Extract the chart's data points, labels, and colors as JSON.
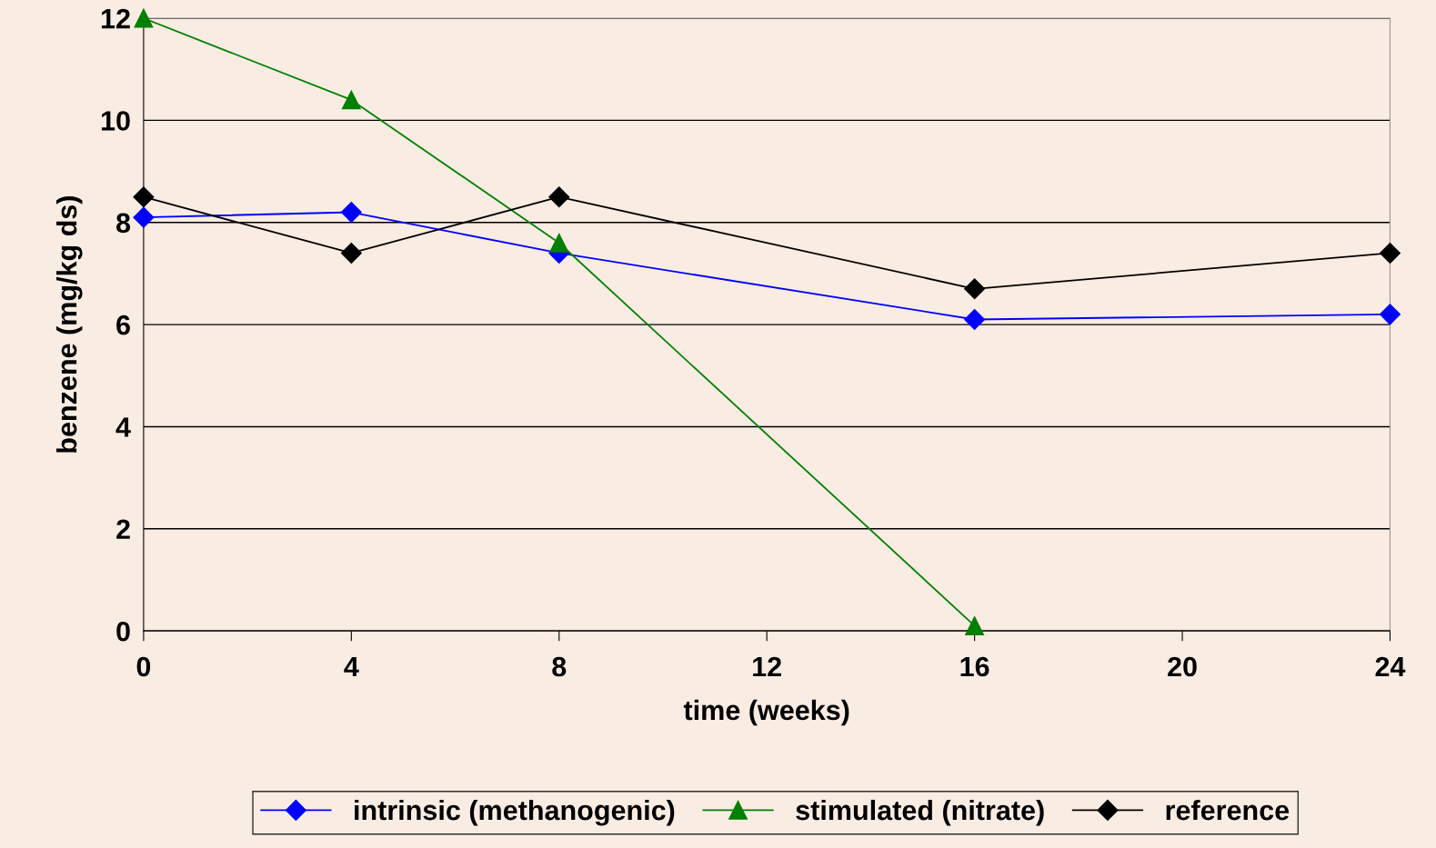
{
  "chart_data": {
    "type": "line",
    "xlabel": "time (weeks)",
    "ylabel": "benzene (mg/kg ds)",
    "xlim": [
      0,
      24
    ],
    "xticks": [
      0,
      4,
      8,
      12,
      16,
      20,
      24
    ],
    "ylim": [
      0,
      12
    ],
    "yticks": [
      0,
      2,
      4,
      6,
      8,
      10,
      12
    ],
    "grid": "y",
    "legend": "bottom",
    "line_style": "solid",
    "series": [
      {
        "name": "intrinsic (methanogenic)",
        "color": "#0000ff",
        "marker": "diamond",
        "x": [
          0,
          4,
          8,
          16,
          24
        ],
        "values": [
          8.1,
          8.2,
          7.4,
          6.1,
          6.2
        ]
      },
      {
        "name": "stimulated (nitrate)",
        "color": "#008000",
        "marker": "triangle",
        "x": [
          0,
          4,
          8,
          16
        ],
        "values": [
          12,
          10.4,
          7.6,
          0.1
        ]
      },
      {
        "name": "reference",
        "color": "#000000",
        "marker": "diamond",
        "x": [
          0,
          4,
          8,
          16,
          24
        ],
        "values": [
          8.5,
          7.4,
          8.5,
          6.7,
          7.4
        ]
      }
    ]
  }
}
